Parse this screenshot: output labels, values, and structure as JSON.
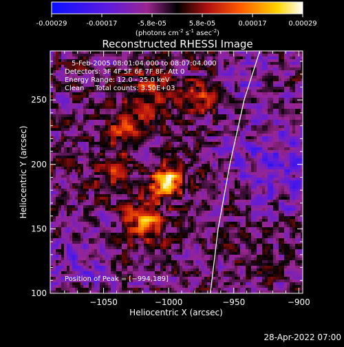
{
  "colorbar": {
    "ticks": [
      "-0.00029",
      "-0.00017",
      "-5.8e-05",
      "5.8e-05",
      "0.00017",
      "0.00029"
    ],
    "unit_label": "(photons cm",
    "unit_sup1": "-2",
    "unit_mid1": " s",
    "unit_sup2": "-1",
    "unit_mid2": " asec",
    "unit_sup3": "-2",
    "unit_end": ")"
  },
  "chart_data": {
    "type": "heatmap",
    "title": "Reconstructed RHESSI Image",
    "xlabel": "Heliocentric X (arcsec)",
    "ylabel": "Heliocentric Y (arcsec)",
    "xlim": [
      -1091,
      -897
    ],
    "ylim": [
      100,
      288
    ],
    "xticks": [
      -1050,
      -1000,
      -950,
      -900
    ],
    "xtick_labels": [
      "−1050",
      "−1000",
      "−950",
      "−900"
    ],
    "yticks": [
      100,
      150,
      200,
      250
    ],
    "ytick_labels": [
      "100",
      "150",
      "200",
      "250"
    ],
    "zlim": [
      -0.00029,
      0.00029
    ],
    "peak": [
      -994,
      189
    ],
    "limb": [
      [
        -968,
        100
      ],
      [
        -962,
        150
      ],
      [
        -953,
        200
      ],
      [
        -942,
        250
      ],
      [
        -930,
        288
      ]
    ],
    "annotations": [
      "5-Feb-2005 08:01:04.000 to 08:07:04.000",
      "Detectors: 3F 4F 5F 6F 7F 8F, Att 0",
      "Energy Range: 12.0 - 25.0 keV",
      "Clean     Total counts: 3.50E+03"
    ],
    "peak_label": "Position of Peak = [−994,189]"
  },
  "timestamp": "28-Apr-2022 07:00"
}
